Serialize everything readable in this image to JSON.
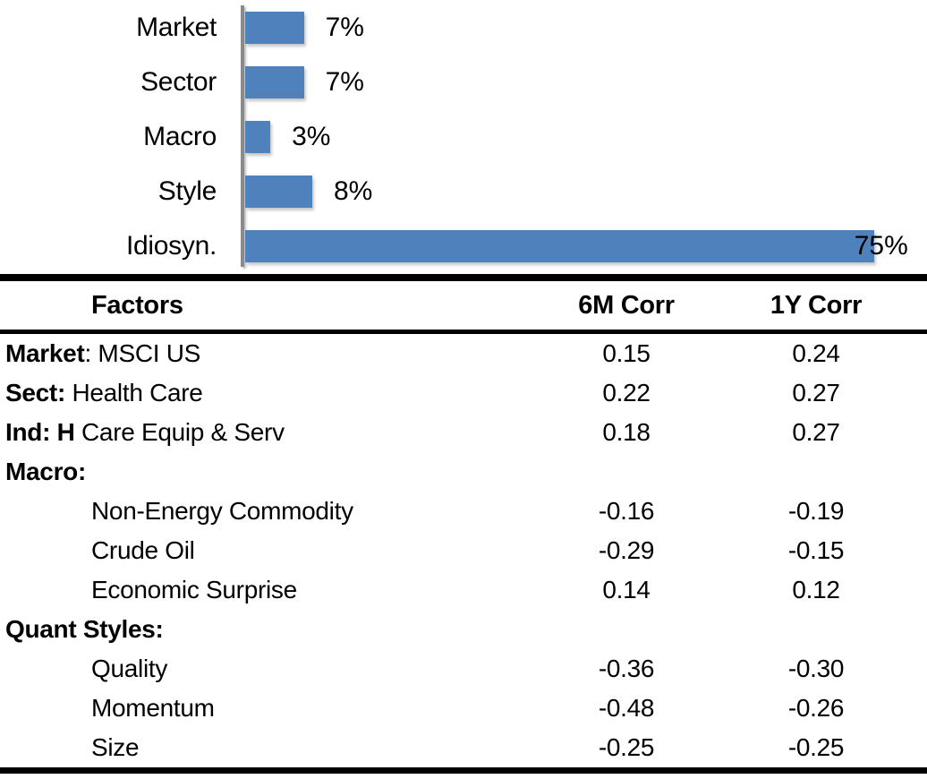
{
  "chart_data": {
    "type": "bar",
    "orientation": "horizontal",
    "title": "",
    "xlabel": "",
    "ylabel": "",
    "categories": [
      "Market",
      "Sector",
      "Macro",
      "Style",
      "Idiosyn."
    ],
    "values": [
      7,
      7,
      3,
      8,
      75
    ],
    "value_labels": [
      "7%",
      "7%",
      "3%",
      "8%",
      "75%"
    ],
    "unit": "%",
    "xlim": [
      0,
      80
    ],
    "grid": false,
    "legend": false,
    "bar_color": "#4F81BD",
    "axis_color": "#8A8A8A"
  },
  "table": {
    "headers": {
      "factors": "Factors",
      "corr_6m": "6M Corr",
      "corr_1y": "1Y Corr"
    },
    "rows": [
      {
        "bold": "Market",
        "rest": ": MSCI US",
        "indent": false,
        "corr_6m": "0.15",
        "corr_1y": "0.24"
      },
      {
        "bold": "Sect:",
        "rest": " Health Care",
        "indent": false,
        "corr_6m": "0.22",
        "corr_1y": "0.27"
      },
      {
        "bold": "Ind: H",
        "rest": " Care Equip & Serv",
        "indent": false,
        "corr_6m": "0.18",
        "corr_1y": "0.27"
      },
      {
        "bold": "Macro:",
        "rest": "",
        "indent": false,
        "corr_6m": "",
        "corr_1y": ""
      },
      {
        "bold": "",
        "rest": "Non-Energy Commodity",
        "indent": true,
        "corr_6m": "-0.16",
        "corr_1y": "-0.19"
      },
      {
        "bold": "",
        "rest": "Crude Oil",
        "indent": true,
        "corr_6m": "-0.29",
        "corr_1y": "-0.15"
      },
      {
        "bold": "",
        "rest": "Economic Surprise",
        "indent": true,
        "corr_6m": "0.14",
        "corr_1y": "0.12"
      },
      {
        "bold": "Quant Styles:",
        "rest": "",
        "indent": false,
        "corr_6m": "",
        "corr_1y": ""
      },
      {
        "bold": "",
        "rest": "Quality",
        "indent": true,
        "corr_6m": "-0.36",
        "corr_1y": "-0.30"
      },
      {
        "bold": "",
        "rest": "Momentum",
        "indent": true,
        "corr_6m": "-0.48",
        "corr_1y": "-0.26"
      },
      {
        "bold": "",
        "rest": "Size",
        "indent": true,
        "corr_6m": "-0.25",
        "corr_1y": "-0.25"
      }
    ]
  }
}
